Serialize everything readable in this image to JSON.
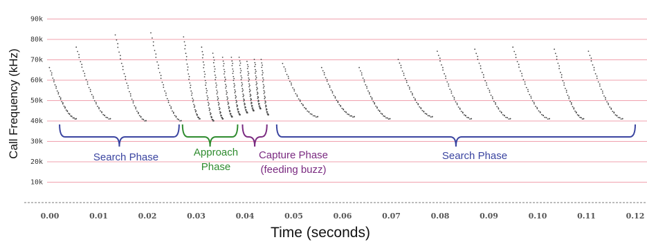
{
  "chart_data": {
    "type": "scatter",
    "title": "",
    "xlabel": "Time (seconds)",
    "ylabel": "Call Frequency (kHz)",
    "xlim": [
      0.0,
      0.12
    ],
    "ylim": [
      0,
      90
    ],
    "x_ticks": [
      "0.00",
      "0.01",
      "0.02",
      "0.03",
      "0.04",
      "0.05",
      "0.06",
      "0.07",
      "0.08",
      "0.09",
      "0.10",
      "0.11",
      "0.12"
    ],
    "y_ticks": [
      "10k",
      "20k",
      "30k",
      "40k",
      "50k",
      "60k",
      "70k",
      "80k",
      "90k"
    ],
    "grid": "horizontal",
    "calls": [
      {
        "start_s": 0.0,
        "end_s": 0.0055,
        "start_khz": 66,
        "end_khz": 41
      },
      {
        "start_s": 0.0055,
        "end_s": 0.0125,
        "start_khz": 76,
        "end_khz": 41
      },
      {
        "start_s": 0.0135,
        "end_s": 0.0198,
        "start_khz": 82,
        "end_khz": 40
      },
      {
        "start_s": 0.0208,
        "end_s": 0.027,
        "start_khz": 83,
        "end_khz": 40
      },
      {
        "start_s": 0.0275,
        "end_s": 0.0308,
        "start_khz": 81,
        "end_khz": 41
      },
      {
        "start_s": 0.0312,
        "end_s": 0.0336,
        "start_khz": 76,
        "end_khz": 40
      },
      {
        "start_s": 0.0335,
        "end_s": 0.0355,
        "start_khz": 73,
        "end_khz": 41
      },
      {
        "start_s": 0.0355,
        "end_s": 0.0374,
        "start_khz": 71,
        "end_khz": 42
      },
      {
        "start_s": 0.0373,
        "end_s": 0.039,
        "start_khz": 71,
        "end_khz": 43
      },
      {
        "start_s": 0.0389,
        "end_s": 0.0405,
        "start_khz": 71,
        "end_khz": 44
      },
      {
        "start_s": 0.0405,
        "end_s": 0.0418,
        "start_khz": 69,
        "end_khz": 45
      },
      {
        "start_s": 0.042,
        "end_s": 0.0432,
        "start_khz": 70,
        "end_khz": 46
      },
      {
        "start_s": 0.0434,
        "end_s": 0.0448,
        "start_khz": 70,
        "end_khz": 43
      },
      {
        "start_s": 0.0478,
        "end_s": 0.055,
        "start_khz": 68,
        "end_khz": 42
      },
      {
        "start_s": 0.0558,
        "end_s": 0.0625,
        "start_khz": 66,
        "end_khz": 42
      },
      {
        "start_s": 0.0635,
        "end_s": 0.0698,
        "start_khz": 66,
        "end_khz": 41
      },
      {
        "start_s": 0.0715,
        "end_s": 0.0785,
        "start_khz": 70,
        "end_khz": 42
      },
      {
        "start_s": 0.0795,
        "end_s": 0.0865,
        "start_khz": 74,
        "end_khz": 41
      },
      {
        "start_s": 0.0872,
        "end_s": 0.0945,
        "start_khz": 75,
        "end_khz": 41
      },
      {
        "start_s": 0.095,
        "end_s": 0.1025,
        "start_khz": 76,
        "end_khz": 41
      },
      {
        "start_s": 0.1035,
        "end_s": 0.1095,
        "start_khz": 75,
        "end_khz": 41
      },
      {
        "start_s": 0.1105,
        "end_s": 0.1175,
        "start_khz": 74,
        "end_khz": 41
      }
    ],
    "annotations": [
      {
        "text": "Search Phase",
        "x_start": 0.002,
        "x_end": 0.0265,
        "color": "#3a44a0"
      },
      {
        "text": "Approach Phase",
        "x_start": 0.0272,
        "x_end": 0.0385,
        "color": "#2e8b2e"
      },
      {
        "text": "Capture Phase (feeding buzz)",
        "x_start": 0.0395,
        "x_end": 0.0445,
        "color": "#7a2a80"
      },
      {
        "text": "Search Phase",
        "x_start": 0.0465,
        "x_end": 0.12,
        "color": "#3a44a0"
      }
    ]
  },
  "labels": {
    "search_phase_1": "Search Phase",
    "approach_line1": "Approach",
    "approach_line2": "Phase",
    "capture_line1": "Capture Phase",
    "capture_line2": "(feeding buzz)",
    "search_phase_2": "Search Phase"
  },
  "colors": {
    "grid": "#f0a0ad",
    "dots": "#444444",
    "search": "#3a44a0",
    "approach": "#2e8b2e",
    "capture": "#7a2a80"
  }
}
